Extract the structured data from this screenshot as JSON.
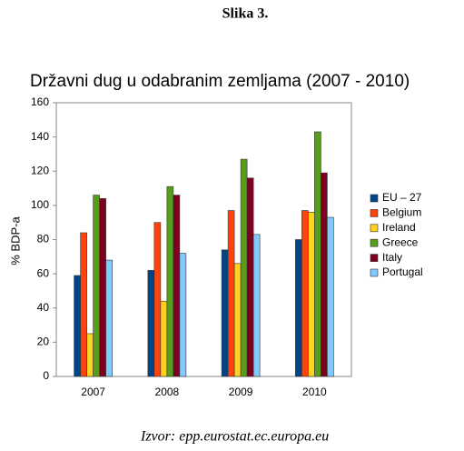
{
  "heading": "Slika 3.",
  "source": "Izvor: epp.eurostat.ec.europa.eu",
  "chart_data": {
    "type": "bar",
    "title": "Državni dug u odabranim zemljama (2007 - 2010)",
    "y_label": "% BDP-a",
    "categories": [
      "2007",
      "2008",
      "2009",
      "2010"
    ],
    "series": [
      {
        "name": "EU – 27",
        "color": "#004586",
        "values": [
          59,
          62,
          74,
          80
        ]
      },
      {
        "name": "Belgium",
        "color": "#ff420e",
        "values": [
          84,
          90,
          97,
          97
        ]
      },
      {
        "name": "Ireland",
        "color": "#ffd320",
        "values": [
          25,
          44,
          66,
          96
        ]
      },
      {
        "name": "Greece",
        "color": "#579d1c",
        "values": [
          106,
          111,
          127,
          143
        ]
      },
      {
        "name": "Italy",
        "color": "#7e0021",
        "values": [
          104,
          106,
          116,
          119
        ]
      },
      {
        "name": "Portugal",
        "color": "#83caff",
        "values": [
          68,
          72,
          83,
          93
        ]
      }
    ],
    "ylim": [
      0,
      160
    ],
    "yticks": [
      0,
      20,
      40,
      60,
      80,
      100,
      120,
      140,
      160
    ],
    "grid": false,
    "legend": "right"
  }
}
